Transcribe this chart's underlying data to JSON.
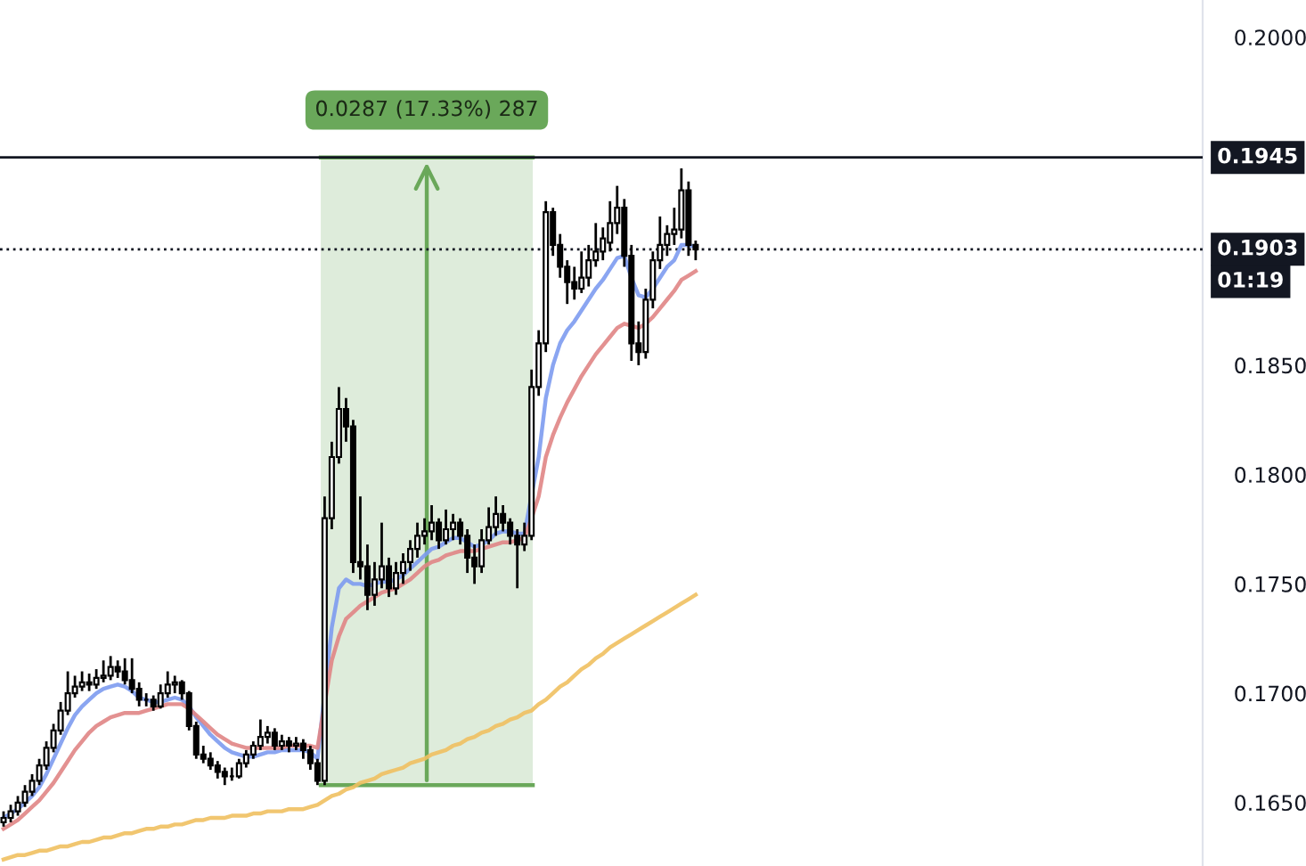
{
  "chart_data": {
    "type": "candlestick",
    "categories": [
      null,
      null,
      null,
      null,
      null,
      null,
      null,
      null,
      null,
      null,
      null,
      null,
      null,
      null,
      null,
      null,
      null,
      null,
      null,
      null,
      null,
      null,
      null,
      null,
      null,
      null,
      null,
      null,
      null,
      null,
      null,
      null,
      null,
      null,
      null,
      null,
      null,
      null,
      null,
      null,
      null,
      null,
      null,
      null,
      null,
      null,
      null,
      null,
      null,
      null,
      null,
      null,
      null,
      null,
      null,
      null,
      null,
      null,
      null,
      null,
      null,
      null,
      null,
      null,
      null,
      null,
      null,
      null,
      null,
      null,
      null,
      null,
      null,
      null,
      null,
      null,
      null,
      null,
      null,
      null,
      null,
      null,
      null,
      null,
      null,
      null,
      null,
      null,
      null,
      null,
      null,
      null,
      null,
      null,
      null,
      null,
      null,
      null
    ],
    "ohlc": [
      [
        0.1641,
        0.1646,
        0.1639,
        0.1643
      ],
      [
        0.1643,
        0.1649,
        0.1641,
        0.1646
      ],
      [
        0.1646,
        0.1653,
        0.1644,
        0.165
      ],
      [
        0.165,
        0.1658,
        0.1648,
        0.1655
      ],
      [
        0.1655,
        0.1663,
        0.1653,
        0.166
      ],
      [
        0.166,
        0.167,
        0.1658,
        0.1667
      ],
      [
        0.1667,
        0.1678,
        0.1665,
        0.1675
      ],
      [
        0.1675,
        0.1686,
        0.1673,
        0.1683
      ],
      [
        0.1683,
        0.1696,
        0.1681,
        0.1692
      ],
      [
        0.1692,
        0.171,
        0.169,
        0.17
      ],
      [
        0.17,
        0.1708,
        0.1698,
        0.1703
      ],
      [
        0.1703,
        0.171,
        0.1701,
        0.1705
      ],
      [
        0.1705,
        0.1709,
        0.1701,
        0.1704
      ],
      [
        0.1704,
        0.1711,
        0.1702,
        0.1707
      ],
      [
        0.1707,
        0.1715,
        0.1705,
        0.1708
      ],
      [
        0.1708,
        0.1717,
        0.1706,
        0.1712
      ],
      [
        0.1712,
        0.1715,
        0.1707,
        0.171
      ],
      [
        0.171,
        0.1716,
        0.1704,
        0.1706
      ],
      [
        0.1706,
        0.1716,
        0.17,
        0.1702
      ],
      [
        0.1702,
        0.1705,
        0.1694,
        0.1697
      ],
      [
        0.1697,
        0.17,
        0.1694,
        0.1697
      ],
      [
        0.1697,
        0.1699,
        0.1692,
        0.1694
      ],
      [
        0.1694,
        0.1704,
        0.1693,
        0.17
      ],
      [
        0.17,
        0.171,
        0.1698,
        0.1704
      ],
      [
        0.1704,
        0.1708,
        0.17,
        0.1705
      ],
      [
        0.1705,
        0.1706,
        0.1697,
        0.17
      ],
      [
        0.17,
        0.1701,
        0.1683,
        0.1685
      ],
      [
        0.1685,
        0.1687,
        0.167,
        0.1672
      ],
      [
        0.1672,
        0.1676,
        0.1668,
        0.167
      ],
      [
        0.167,
        0.1673,
        0.1665,
        0.1667
      ],
      [
        0.1667,
        0.1669,
        0.1661,
        0.1664
      ],
      [
        0.1664,
        0.1666,
        0.1658,
        0.1662
      ],
      [
        0.1662,
        0.1666,
        0.166,
        0.1662
      ],
      [
        0.1662,
        0.167,
        0.1661,
        0.1668
      ],
      [
        0.1668,
        0.1674,
        0.1666,
        0.1672
      ],
      [
        0.1672,
        0.1678,
        0.167,
        0.1676
      ],
      [
        0.1676,
        0.1688,
        0.1674,
        0.168
      ],
      [
        0.168,
        0.1685,
        0.1677,
        0.1682
      ],
      [
        0.1682,
        0.1684,
        0.1674,
        0.1676
      ],
      [
        0.1676,
        0.1681,
        0.1674,
        0.1678
      ],
      [
        0.1678,
        0.168,
        0.1673,
        0.1676
      ],
      [
        0.1676,
        0.168,
        0.1674,
        0.1677
      ],
      [
        0.1677,
        0.1679,
        0.167,
        0.1674
      ],
      [
        0.1674,
        0.1676,
        0.1665,
        0.1668
      ],
      [
        0.1668,
        0.167,
        0.1658,
        0.166
      ],
      [
        0.166,
        0.179,
        0.1658,
        0.178
      ],
      [
        0.178,
        0.1815,
        0.1775,
        0.1808
      ],
      [
        0.1808,
        0.184,
        0.1805,
        0.183
      ],
      [
        0.183,
        0.1835,
        0.1815,
        0.1822
      ],
      [
        0.1822,
        0.1825,
        0.1755,
        0.176
      ],
      [
        0.176,
        0.179,
        0.1752,
        0.1758
      ],
      [
        0.1758,
        0.1768,
        0.1738,
        0.1745
      ],
      [
        0.1745,
        0.176,
        0.174,
        0.1752
      ],
      [
        0.1752,
        0.1778,
        0.1748,
        0.1758
      ],
      [
        0.1758,
        0.1762,
        0.1744,
        0.1748
      ],
      [
        0.1748,
        0.176,
        0.1745,
        0.1755
      ],
      [
        0.1755,
        0.1764,
        0.175,
        0.176
      ],
      [
        0.176,
        0.177,
        0.1756,
        0.1766
      ],
      [
        0.1766,
        0.1778,
        0.1762,
        0.1772
      ],
      [
        0.1772,
        0.178,
        0.1768,
        0.1774
      ],
      [
        0.1774,
        0.1786,
        0.177,
        0.1778
      ],
      [
        0.1778,
        0.178,
        0.1766,
        0.177
      ],
      [
        0.177,
        0.1784,
        0.1768,
        0.1775
      ],
      [
        0.1775,
        0.1782,
        0.177,
        0.1778
      ],
      [
        0.1778,
        0.178,
        0.1768,
        0.1772
      ],
      [
        0.1772,
        0.1775,
        0.1755,
        0.1762
      ],
      [
        0.1762,
        0.1768,
        0.175,
        0.1758
      ],
      [
        0.1758,
        0.1775,
        0.1755,
        0.177
      ],
      [
        0.177,
        0.1785,
        0.1768,
        0.1776
      ],
      [
        0.1776,
        0.179,
        0.1772,
        0.1782
      ],
      [
        0.1782,
        0.1786,
        0.1774,
        0.1778
      ],
      [
        0.1778,
        0.178,
        0.1768,
        0.1772
      ],
      [
        0.1772,
        0.1775,
        0.1748,
        0.1768
      ],
      [
        0.1768,
        0.1778,
        0.1765,
        0.1772
      ],
      [
        0.1772,
        0.1848,
        0.177,
        0.184
      ],
      [
        0.184,
        0.1866,
        0.1836,
        0.186
      ],
      [
        0.186,
        0.1925,
        0.1856,
        0.192
      ],
      [
        0.192,
        0.1922,
        0.19,
        0.1905
      ],
      [
        0.1905,
        0.191,
        0.189,
        0.1895
      ],
      [
        0.1895,
        0.1898,
        0.1878,
        0.1888
      ],
      [
        0.1888,
        0.1895,
        0.188,
        0.1885
      ],
      [
        0.1885,
        0.1902,
        0.1883,
        0.189
      ],
      [
        0.189,
        0.1905,
        0.1886,
        0.1898
      ],
      [
        0.1898,
        0.1915,
        0.1895,
        0.1902
      ],
      [
        0.1902,
        0.1913,
        0.1898,
        0.1908
      ],
      [
        0.1906,
        0.1925,
        0.1902,
        0.1915
      ],
      [
        0.1915,
        0.1932,
        0.191,
        0.1922
      ],
      [
        0.1922,
        0.1926,
        0.1895,
        0.19
      ],
      [
        0.19,
        0.1905,
        0.1852,
        0.186
      ],
      [
        0.186,
        0.187,
        0.185,
        0.1856
      ],
      [
        0.1856,
        0.1885,
        0.1853,
        0.188
      ],
      [
        0.188,
        0.1902,
        0.1876,
        0.1898
      ],
      [
        0.1898,
        0.1918,
        0.1894,
        0.1905
      ],
      [
        0.1905,
        0.1914,
        0.19,
        0.191
      ],
      [
        0.191,
        0.1922,
        0.1905,
        0.1912
      ],
      [
        0.1912,
        0.194,
        0.1908,
        0.193
      ],
      [
        0.193,
        0.1934,
        0.19,
        0.1905
      ],
      [
        0.1905,
        0.1907,
        0.1898,
        0.1903
      ]
    ],
    "series": [
      {
        "type": "line",
        "color": "#7d9bf0",
        "values": [
          0.1643,
          0.1645,
          0.1647,
          0.165,
          0.1653,
          0.1657,
          0.1663,
          0.167,
          0.1677,
          0.1684,
          0.169,
          0.1694,
          0.1697,
          0.17,
          0.1702,
          0.1703,
          0.1704,
          0.1703,
          0.1701,
          0.1698,
          0.1697,
          0.1696,
          0.1696,
          0.1697,
          0.1698,
          0.1697,
          0.1694,
          0.1689,
          0.1685,
          0.1681,
          0.1678,
          0.1675,
          0.1673,
          0.1672,
          0.1671,
          0.1671,
          0.1672,
          0.1673,
          0.1673,
          0.1674,
          0.1674,
          0.1674,
          0.1674,
          0.1673,
          0.167,
          null,
          0.173,
          0.1748,
          0.1752,
          0.175,
          0.175,
          0.1749,
          0.175,
          0.1751,
          0.1751,
          0.1752,
          0.1754,
          0.1757,
          0.176,
          0.1763,
          0.1766,
          0.1767,
          0.1769,
          0.1771,
          0.1771,
          0.1769,
          0.1767,
          0.1768,
          0.177,
          0.1773,
          0.1774,
          0.1774,
          0.1773,
          0.1773,
          null,
          0.1808,
          0.1835,
          0.185,
          0.186,
          0.1866,
          0.187,
          0.1875,
          0.188,
          0.1885,
          0.1889,
          0.1894,
          0.1899,
          0.19,
          0.189,
          0.1882,
          0.1881,
          0.1885,
          0.189,
          0.1895,
          0.1898,
          0.1905,
          0.1905,
          0.1904
        ]
      },
      {
        "type": "line",
        "color": "#e08585",
        "values": [
          0.1638,
          0.164,
          0.1642,
          0.1645,
          0.1648,
          0.1651,
          0.1655,
          0.1659,
          0.1664,
          0.1669,
          0.1674,
          0.1678,
          0.1682,
          0.1685,
          0.1687,
          0.1689,
          0.169,
          0.1691,
          0.1691,
          0.1691,
          0.1692,
          0.1693,
          0.1694,
          0.1695,
          0.1695,
          0.1695,
          0.1693,
          0.169,
          0.1687,
          0.1684,
          0.1681,
          0.1679,
          0.1677,
          0.1676,
          0.1675,
          0.1675,
          0.1675,
          0.1675,
          0.1675,
          0.1675,
          0.1676,
          0.1676,
          0.1676,
          0.1676,
          0.1675,
          null,
          0.1715,
          0.1726,
          0.1734,
          0.1737,
          0.174,
          0.1742,
          0.1744,
          0.1746,
          0.1747,
          0.1748,
          0.175,
          0.1752,
          0.1755,
          0.1758,
          0.176,
          0.1761,
          0.1763,
          0.1764,
          0.1765,
          0.1765,
          0.1765,
          0.1766,
          0.1767,
          0.1768,
          0.1769,
          0.1769,
          0.177,
          0.1771,
          0.178,
          0.179,
          0.1808,
          0.1818,
          0.1826,
          0.1833,
          0.1839,
          0.1845,
          0.185,
          0.1855,
          0.1859,
          0.1863,
          0.1867,
          0.1869,
          0.1868,
          0.1867,
          0.1869,
          0.1872,
          0.1876,
          0.188,
          0.1884,
          0.1889,
          0.1891,
          0.1893
        ]
      },
      {
        "type": "line",
        "color": "#f0c060",
        "values": [
          0.1624,
          0.1625,
          0.1626,
          0.1626,
          0.1627,
          0.1628,
          0.1628,
          0.1629,
          0.163,
          0.163,
          0.1631,
          0.1632,
          0.1632,
          0.1633,
          0.1634,
          0.1634,
          0.1635,
          0.1636,
          0.1636,
          0.1637,
          0.1638,
          0.1638,
          0.1639,
          0.1639,
          0.164,
          0.164,
          0.1641,
          0.1642,
          0.1642,
          0.1643,
          0.1643,
          0.1643,
          0.1644,
          0.1644,
          0.1644,
          0.1645,
          0.1645,
          0.1646,
          0.1646,
          0.1646,
          0.1647,
          0.1647,
          0.1647,
          0.1648,
          0.1649,
          0.1651,
          0.1653,
          0.1654,
          0.1656,
          0.1657,
          0.1659,
          0.166,
          0.1661,
          0.1663,
          0.1664,
          0.1665,
          0.1666,
          0.1668,
          0.1669,
          0.167,
          0.1672,
          0.1673,
          0.1674,
          0.1676,
          0.1677,
          0.1679,
          0.168,
          0.1682,
          0.1683,
          0.1685,
          0.1686,
          0.1688,
          0.1689,
          0.1691,
          0.1692,
          0.1695,
          0.1697,
          0.17,
          0.1703,
          0.1705,
          0.1708,
          0.1711,
          0.1713,
          0.1716,
          0.1718,
          0.1721,
          0.1723,
          0.1725,
          0.1727,
          0.1729,
          0.1731,
          0.1733,
          0.1735,
          0.1737,
          0.1739,
          0.1741,
          0.1743,
          0.1745
        ]
      }
    ],
    "ref_lines": [
      {
        "axis": "y",
        "value": 0.1945,
        "label": "0.1945",
        "color": "#131722",
        "line_style": "solid"
      },
      {
        "axis": "y",
        "value": 0.1903,
        "label": "0.1903",
        "color": "#131722",
        "line_style": "dotted"
      }
    ],
    "annotations": [
      {
        "text": "0.0287 (17.33%) 287",
        "y": 0.1945
      },
      "01:19"
    ],
    "ylim": [
      0.1621,
      0.2017
    ],
    "yticks": [
      {
        "value": 0.165,
        "label": "0.1650"
      },
      {
        "value": 0.17,
        "label": "0.1700"
      },
      {
        "value": 0.175,
        "label": "0.1750"
      },
      {
        "value": 0.18,
        "label": "0.1800"
      },
      {
        "value": 0.185,
        "label": "0.1850"
      },
      {
        "value": 0.2,
        "label": "0.2000"
      }
    ],
    "tick_labels": "y",
    "grid": false,
    "legend": false
  }
}
